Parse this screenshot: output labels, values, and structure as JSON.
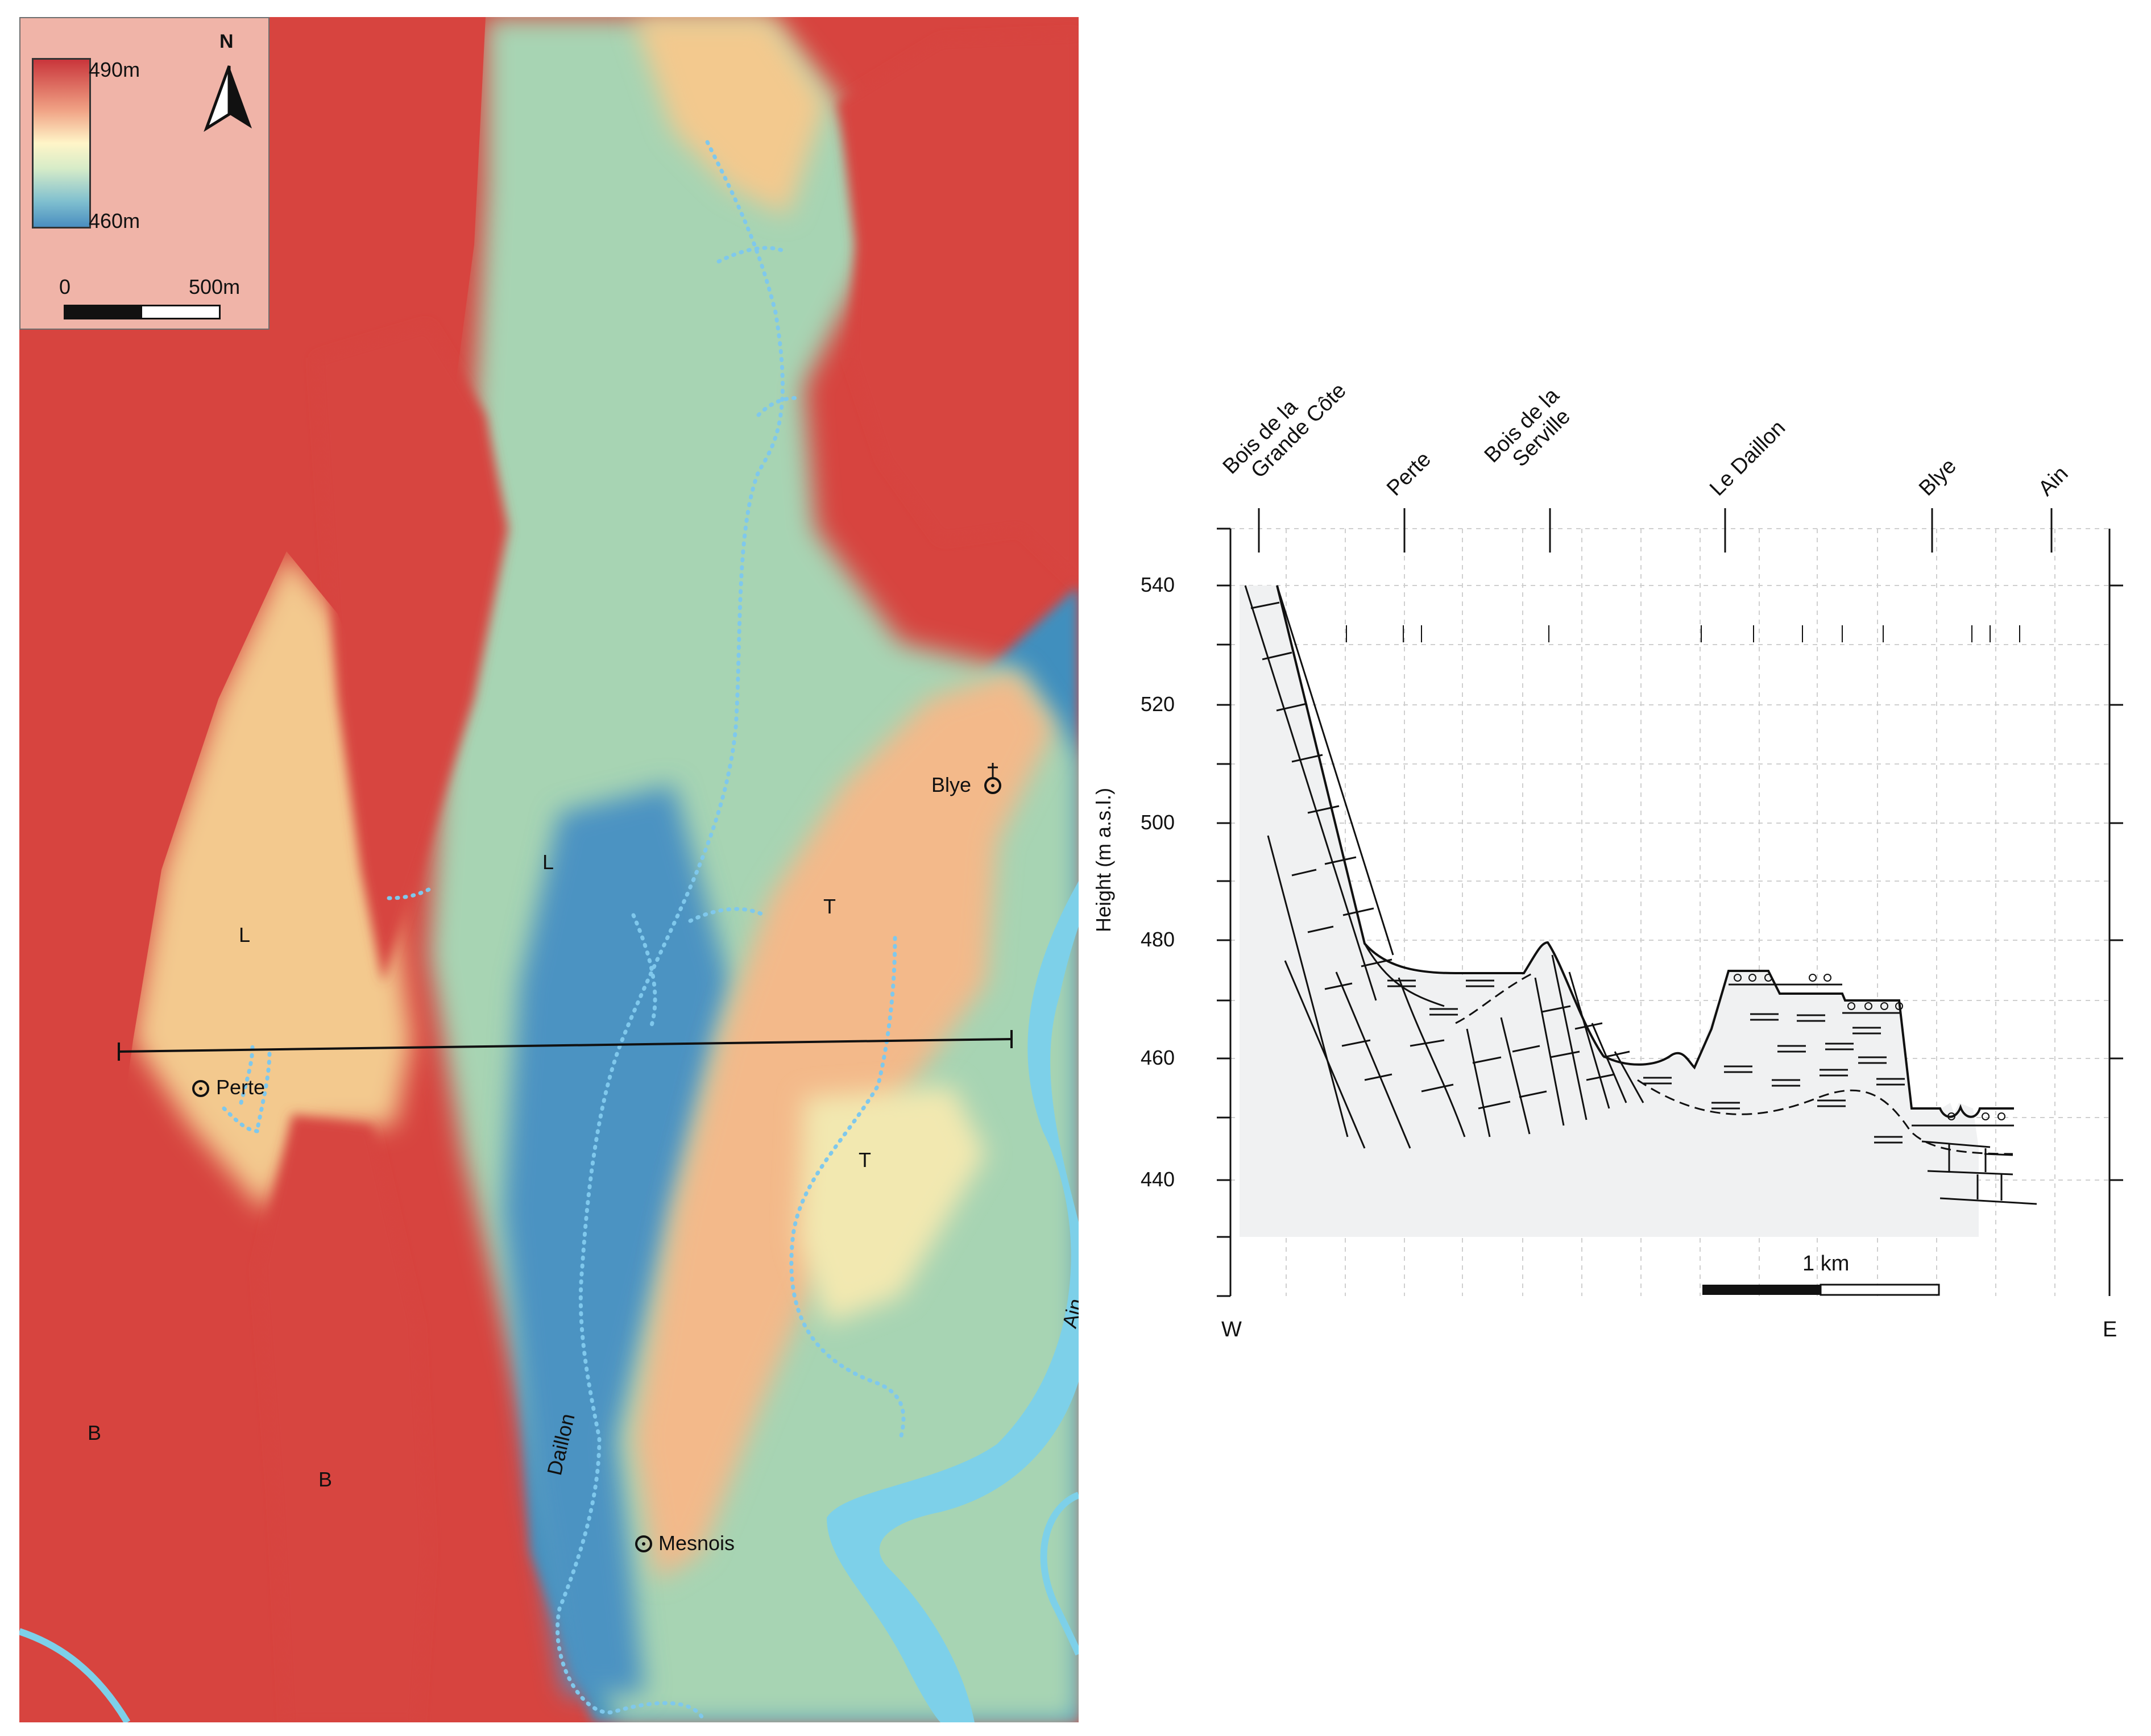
{
  "map": {
    "legend": {
      "max_label": "490m",
      "min_label": "460m",
      "north_label": "N",
      "scale_start": "0",
      "scale_end": "500m",
      "ramp_colors": [
        "#c9353b",
        "#f0a184",
        "#fff5c8",
        "#d7ecc8",
        "#7fbfcf",
        "#4a8ec0"
      ]
    },
    "units": {
      "L_west": "L",
      "L_center": "L",
      "T_east_upper": "T",
      "T_east_lower": "T",
      "B_west": "B",
      "B_middle": "B"
    },
    "places": {
      "blye": "Blye",
      "perte": "Perte",
      "mesnois": "Mesnois"
    },
    "rivers": {
      "daillon": "Daillon",
      "ain": "Ain"
    },
    "colors": {
      "high": "#d7443f",
      "mid_high": "#f3b98a",
      "mid": "#fbeab8",
      "mid_low": "#cfe6bd",
      "low_green": "#a7d4b3",
      "low": "#3f8fbe",
      "water": "#7dd0e9",
      "stream_dots": "#7fc8ec"
    }
  },
  "section": {
    "sites": [
      {
        "label": "Bois de la\nGrande Côte",
        "line1": "Bois de la",
        "line2": "Grande Côte"
      },
      {
        "label": "Perte"
      },
      {
        "label": "Bois de la\nServille",
        "line1": "Bois de la",
        "line2": "Serville"
      },
      {
        "label": "Le Daillon"
      },
      {
        "label": "Blye"
      },
      {
        "label": "Ain"
      }
    ],
    "axis_label": "Height (m a.s.l.)",
    "y_ticks": [
      "540",
      "520",
      "500",
      "480",
      "460",
      "440"
    ],
    "west": "W",
    "east": "E",
    "scale_label": "1 km"
  }
}
